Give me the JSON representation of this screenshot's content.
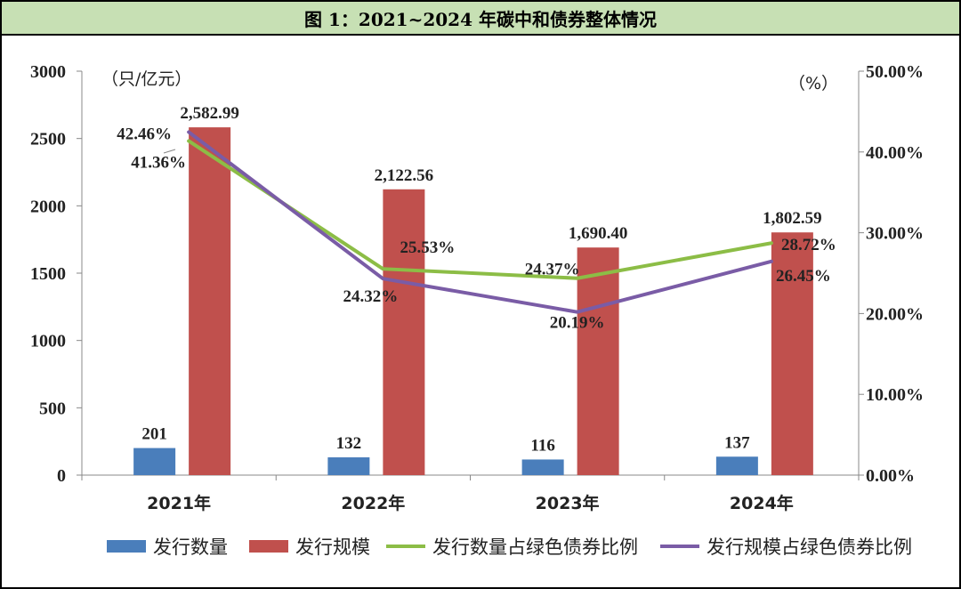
{
  "chart_data": {
    "type": "bar",
    "title": "图 1：2021~2024 年碳中和债券整体情况",
    "categories": [
      "2021年",
      "2022年",
      "2023年",
      "2024年"
    ],
    "left_axis": {
      "unit_label": "（只/亿元）",
      "ylim": [
        0,
        3000
      ],
      "ticks": [
        0,
        500,
        1000,
        1500,
        2000,
        2500,
        3000
      ],
      "tick_labels": [
        "0",
        "500",
        "1000",
        "1500",
        "2000",
        "2500",
        "3000"
      ]
    },
    "right_axis": {
      "unit_label": "（%）",
      "ylim": [
        0,
        50
      ],
      "ticks": [
        0,
        10,
        20,
        30,
        40,
        50
      ],
      "tick_labels": [
        "0.00%",
        "10.00%",
        "20.00%",
        "30.00%",
        "40.00%",
        "50.00%"
      ]
    },
    "series": [
      {
        "name": "发行数量",
        "type": "bar",
        "axis": "left",
        "color": "#4a7ebb",
        "values": [
          201,
          132,
          116,
          137
        ],
        "labels": [
          "201",
          "132",
          "116",
          "137"
        ]
      },
      {
        "name": "发行规模",
        "type": "bar",
        "axis": "left",
        "color": "#c0504d",
        "values": [
          2582.99,
          2122.56,
          1690.4,
          1802.59
        ],
        "labels": [
          "2,582.99",
          "2,122.56",
          "1,690.40",
          "1,802.59"
        ]
      },
      {
        "name": "发行数量占绿色债券比例",
        "type": "line",
        "axis": "right",
        "color": "#8cbd46",
        "values": [
          41.36,
          25.53,
          24.37,
          28.72
        ],
        "labels": [
          "41.36%",
          "25.53%",
          "24.37%",
          "28.72%"
        ]
      },
      {
        "name": "发行规模占绿色债券比例",
        "type": "line",
        "axis": "right",
        "color": "#7a5ca6",
        "values": [
          42.46,
          24.32,
          20.19,
          26.45
        ],
        "labels": [
          "42.46%",
          "24.32%",
          "20.19%",
          "26.45%"
        ]
      }
    ],
    "legend_position": "bottom"
  }
}
